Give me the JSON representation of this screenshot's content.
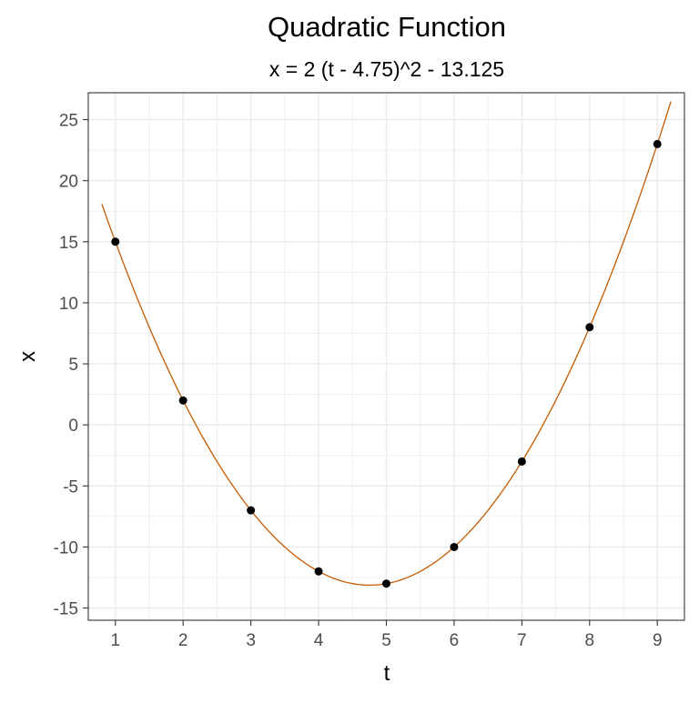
{
  "chart_data": {
    "type": "scatter",
    "title": "Quadratic Function",
    "subtitle": "x = 2 (t - 4.75)^2 - 13.125",
    "xlabel": "t",
    "ylabel": "x",
    "xlim": [
      0.6,
      9.4
    ],
    "ylim": [
      -16,
      27.2
    ],
    "x_ticks": [
      1,
      2,
      3,
      4,
      5,
      6,
      7,
      8,
      9
    ],
    "y_ticks": [
      -15,
      -10,
      -5,
      0,
      5,
      10,
      15,
      20,
      25
    ],
    "x_tick_labels": [
      "1",
      "2",
      "3",
      "4",
      "5",
      "6",
      "7",
      "8",
      "9"
    ],
    "y_tick_labels": [
      "-15",
      "-10",
      "-5",
      "0",
      "5",
      "10",
      "15",
      "20",
      "25"
    ],
    "grid": true,
    "points": {
      "x": [
        1,
        2,
        3,
        4,
        5,
        6,
        7,
        8,
        9
      ],
      "y": [
        15,
        2,
        -7,
        -12,
        -13,
        -10,
        -3,
        8,
        23
      ]
    },
    "fit_curve": {
      "a": 2,
      "h": 4.75,
      "k": -13.125,
      "t_range": [
        0.8,
        9.2
      ]
    },
    "colors": {
      "points": "#000000",
      "curve": "#c45a00",
      "grid": "#ebebeb",
      "panel_border": "#333333"
    }
  }
}
